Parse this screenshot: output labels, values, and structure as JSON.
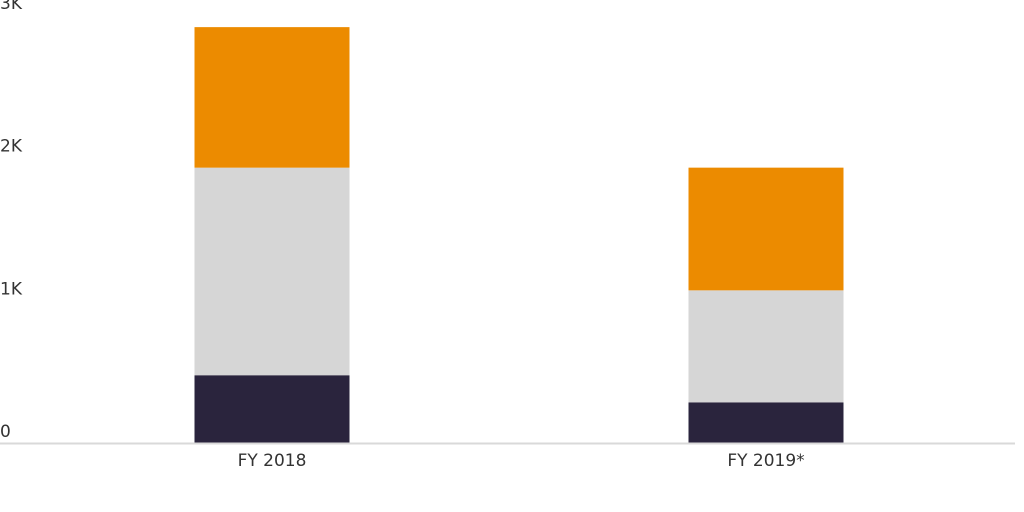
{
  "chart_data": {
    "type": "bar",
    "stacked": true,
    "title": "",
    "xlabel": "",
    "ylabel": "",
    "categories": [
      "FY 2018",
      "FY 2019*"
    ],
    "series": [
      {
        "color": "#2a243d",
        "values": [
          475,
          285
        ]
      },
      {
        "color": "#d6d6d6",
        "values": [
          1455,
          785
        ]
      },
      {
        "color": "#ec8b00",
        "values": [
          985,
          860
        ]
      }
    ],
    "ylim": [
      0,
      3000
    ],
    "yticks": [
      0,
      1000,
      2000,
      3000
    ],
    "ytick_labels": [
      "0",
      "1K",
      "2K",
      "3K"
    ],
    "grid": false,
    "legend": "none"
  }
}
